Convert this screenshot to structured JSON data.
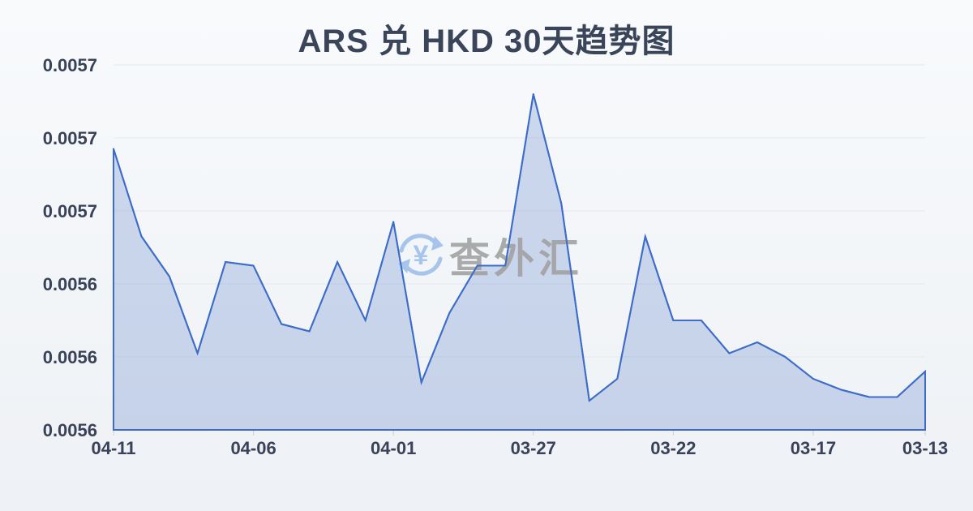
{
  "title": {
    "text": "ARS 兑 HKD 30天趋势图"
  },
  "watermark": {
    "text": "查外汇",
    "yuan_symbol": "¥"
  },
  "colors": {
    "page_bg_top": "#f8fafc",
    "page_bg_bottom": "#eef1f5",
    "title_text": "#3b4559",
    "axis_text": "#3a4258",
    "grid": "#e5e8ee",
    "tick": "#c9cfd8",
    "line": "#3d6dc8",
    "area_fill": "rgba(93,131,202,0.28)",
    "watermark_icon": "#9fbfea",
    "watermark_text": "#a2a2a2"
  },
  "chart_data": {
    "type": "area",
    "title": "ARS 兑 HKD 30天趋势图",
    "xlabel": "",
    "ylabel": "",
    "grid": true,
    "legend_position": "none",
    "ylim": [
      0.0056,
      0.0057
    ],
    "x": [
      "04-11",
      "04-10",
      "04-09",
      "04-08",
      "04-07",
      "04-06",
      "04-05",
      "04-04",
      "04-03",
      "04-02",
      "04-01",
      "03-31",
      "03-30",
      "03-29",
      "03-28",
      "03-27",
      "03-26",
      "03-25",
      "03-24",
      "03-23",
      "03-22",
      "03-21",
      "03-20",
      "03-19",
      "03-18",
      "03-17",
      "03-16",
      "03-15",
      "03-14",
      "03-13"
    ],
    "values": [
      0.005677,
      0.005653,
      0.005642,
      0.005621,
      0.005646,
      0.005645,
      0.005629,
      0.005627,
      0.005646,
      0.00563,
      0.005657,
      0.005613,
      0.005632,
      0.005645,
      0.005645,
      0.005692,
      0.005662,
      0.005608,
      0.005614,
      0.005653,
      0.00563,
      0.00563,
      0.005621,
      0.005624,
      0.00562,
      0.005614,
      0.005611,
      0.005609,
      0.005609,
      0.005616
    ],
    "x_tick_labels": [
      "04-11",
      "04-06",
      "04-01",
      "03-27",
      "03-22",
      "03-17",
      "03-13"
    ],
    "y_ticks": [
      {
        "value": 0.0057,
        "label": "0.0057"
      },
      {
        "value": 0.00568,
        "label": "0.0057"
      },
      {
        "value": 0.00566,
        "label": "0.0057"
      },
      {
        "value": 0.00564,
        "label": "0.0056"
      },
      {
        "value": 0.00562,
        "label": "0.0056"
      },
      {
        "value": 0.0056,
        "label": "0.0056"
      }
    ]
  }
}
